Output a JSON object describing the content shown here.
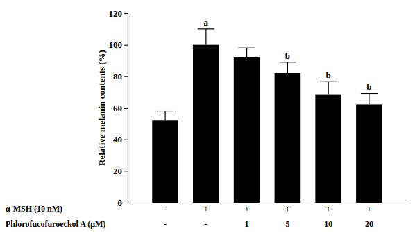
{
  "chart_data": {
    "type": "bar",
    "y_label": "Relative melanin contents (%)",
    "category_rows": [
      {
        "label": "α-MSH (10 nM)",
        "values": [
          "-",
          "+",
          "+",
          "+",
          "+",
          "+"
        ]
      },
      {
        "label": "Phlorofucofuroeckol A (μM)",
        "values": [
          "-",
          "-",
          "1",
          "5",
          "10",
          "20"
        ]
      }
    ],
    "values": [
      52,
      100,
      92,
      82,
      68.5,
      62
    ],
    "errors": [
      6,
      10,
      6,
      7,
      8,
      7
    ],
    "annotations": [
      null,
      "a",
      null,
      "b",
      "b",
      "b"
    ],
    "color": "#000000",
    "ylim": [
      0,
      120
    ],
    "yticks": [
      0,
      20,
      40,
      60,
      80,
      100,
      120
    ],
    "grid": false
  }
}
